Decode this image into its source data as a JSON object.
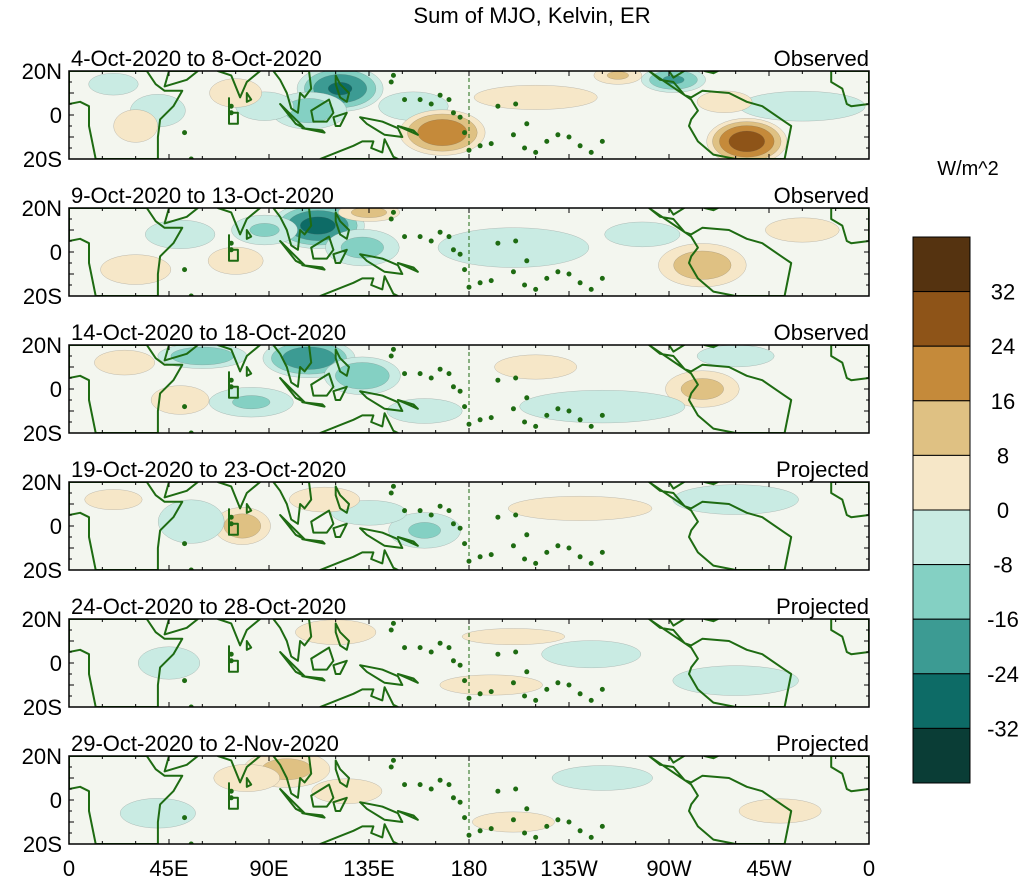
{
  "chart_data": {
    "type": "heatmap",
    "title": "Sum of MJO, Kelvin, ER",
    "colorbar": {
      "unit": "W/m^2",
      "tick_labels": [
        "32",
        "24",
        "16",
        "8",
        "0",
        "-8",
        "-16",
        "-24",
        "-32"
      ],
      "ticks": [
        32,
        24,
        16,
        8,
        0,
        -8,
        -16,
        -24,
        -32
      ],
      "range": [
        -40,
        40
      ],
      "colors": [
        "#553310",
        "#8e5418",
        "#c58a3a",
        "#dfc183",
        "#f6e7c8",
        "#c9ebe3",
        "#84d0c3",
        "#3c9b93",
        "#0d6b66",
        "#0a3d36"
      ]
    },
    "x_ticks": [
      "0",
      "45E",
      "90E",
      "135E",
      "180",
      "135W",
      "90W",
      "45W",
      "0"
    ],
    "x_tick_values": [
      0,
      45,
      90,
      135,
      180,
      225,
      270,
      315,
      360
    ],
    "y_ticks": [
      "20N",
      "0",
      "20S"
    ],
    "y_tick_values": [
      20,
      0,
      -20
    ],
    "panels": [
      {
        "period": "4-Oct-2020 to 8-Oct-2020",
        "status": "Observed",
        "anomalies": [
          {
            "lon": 122,
            "lat": 12,
            "value": -30,
            "wlon": 13,
            "wlat": 7
          },
          {
            "lon": 108,
            "lat": 2,
            "value": -18,
            "wlon": 12,
            "wlat": 6
          },
          {
            "lon": 88,
            "lat": 4,
            "value": -12,
            "wlon": 10,
            "wlat": 5
          },
          {
            "lon": 40,
            "lat": 2,
            "value": -10,
            "wlon": 10,
            "wlat": 6
          },
          {
            "lon": 20,
            "lat": 14,
            "value": -10,
            "wlon": 9,
            "wlat": 4
          },
          {
            "lon": 155,
            "lat": 4,
            "value": -12,
            "wlon": 12,
            "wlat": 5
          },
          {
            "lon": 330,
            "lat": 4,
            "value": -8,
            "wlon": 25,
            "wlat": 6
          },
          {
            "lon": 272,
            "lat": 16,
            "value": -22,
            "wlon": 10,
            "wlat": 4
          },
          {
            "lon": 247,
            "lat": 18,
            "value": 14,
            "wlon": 8,
            "wlat": 3
          },
          {
            "lon": 168,
            "lat": -8,
            "value": 28,
            "wlon": 13,
            "wlat": 7
          },
          {
            "lon": 305,
            "lat": -12,
            "value": 34,
            "wlon": 12,
            "wlat": 7
          },
          {
            "lon": 75,
            "lat": 10,
            "value": 12,
            "wlon": 9,
            "wlat": 5
          },
          {
            "lon": 30,
            "lat": -5,
            "value": 10,
            "wlon": 8,
            "wlat": 6
          },
          {
            "lon": 295,
            "lat": 6,
            "value": 10,
            "wlon": 10,
            "wlat": 4
          },
          {
            "lon": 210,
            "lat": 8,
            "value": 6,
            "wlon": 30,
            "wlat": 6
          }
        ]
      },
      {
        "period": "9-Oct-2020 to 13-Oct-2020",
        "status": "Observed",
        "anomalies": [
          {
            "lon": 112,
            "lat": 12,
            "value": -32,
            "wlon": 14,
            "wlat": 7
          },
          {
            "lon": 132,
            "lat": 2,
            "value": -16,
            "wlon": 12,
            "wlat": 6
          },
          {
            "lon": 88,
            "lat": 10,
            "value": -14,
            "wlon": 11,
            "wlat": 5
          },
          {
            "lon": 50,
            "lat": 8,
            "value": -12,
            "wlon": 12,
            "wlat": 5
          },
          {
            "lon": 75,
            "lat": -4,
            "value": 10,
            "wlon": 10,
            "wlat": 5
          },
          {
            "lon": 135,
            "lat": 18,
            "value": 16,
            "wlon": 10,
            "wlat": 3
          },
          {
            "lon": 285,
            "lat": -6,
            "value": 18,
            "wlon": 14,
            "wlat": 7
          },
          {
            "lon": 200,
            "lat": 2,
            "value": -8,
            "wlon": 30,
            "wlat": 8
          },
          {
            "lon": 258,
            "lat": 8,
            "value": -8,
            "wlon": 15,
            "wlat": 5
          },
          {
            "lon": 30,
            "lat": -8,
            "value": 8,
            "wlon": 14,
            "wlat": 6
          },
          {
            "lon": 330,
            "lat": 10,
            "value": 6,
            "wlon": 18,
            "wlat": 6
          }
        ]
      },
      {
        "period": "14-Oct-2020 to 18-Oct-2020",
        "status": "Observed",
        "anomalies": [
          {
            "lon": 108,
            "lat": 14,
            "value": -28,
            "wlon": 14,
            "wlat": 6
          },
          {
            "lon": 132,
            "lat": 6,
            "value": -20,
            "wlon": 12,
            "wlat": 6
          },
          {
            "lon": 60,
            "lat": 15,
            "value": -20,
            "wlon": 14,
            "wlat": 4
          },
          {
            "lon": 82,
            "lat": -6,
            "value": -14,
            "wlon": 14,
            "wlat": 5
          },
          {
            "lon": 50,
            "lat": -5,
            "value": 12,
            "wlon": 10,
            "wlat": 5
          },
          {
            "lon": 25,
            "lat": 12,
            "value": 8,
            "wlon": 12,
            "wlat": 5
          },
          {
            "lon": 285,
            "lat": 0,
            "value": 16,
            "wlon": 12,
            "wlat": 6
          },
          {
            "lon": 240,
            "lat": -8,
            "value": -10,
            "wlon": 30,
            "wlat": 6
          },
          {
            "lon": 300,
            "lat": 15,
            "value": -10,
            "wlon": 14,
            "wlat": 4
          },
          {
            "lon": 210,
            "lat": 10,
            "value": 6,
            "wlon": 20,
            "wlat": 6
          },
          {
            "lon": 160,
            "lat": -10,
            "value": -8,
            "wlon": 15,
            "wlat": 5
          }
        ]
      },
      {
        "period": "19-Oct-2020 to 23-Oct-2020",
        "status": "Projected",
        "anomalies": [
          {
            "lon": 78,
            "lat": 0,
            "value": 18,
            "wlon": 9,
            "wlat": 6
          },
          {
            "lon": 55,
            "lat": 2,
            "value": -10,
            "wlon": 12,
            "wlat": 8
          },
          {
            "lon": 160,
            "lat": -2,
            "value": -14,
            "wlon": 12,
            "wlat": 6
          },
          {
            "lon": 135,
            "lat": 6,
            "value": -8,
            "wlon": 15,
            "wlat": 5
          },
          {
            "lon": 115,
            "lat": 12,
            "value": 8,
            "wlon": 14,
            "wlat": 5
          },
          {
            "lon": 230,
            "lat": 8,
            "value": 6,
            "wlon": 35,
            "wlat": 6
          },
          {
            "lon": 300,
            "lat": 12,
            "value": -8,
            "wlon": 25,
            "wlat": 6
          },
          {
            "lon": 20,
            "lat": 12,
            "value": 6,
            "wlon": 14,
            "wlat": 5
          }
        ]
      },
      {
        "period": "24-Oct-2020 to 28-Oct-2020",
        "status": "Projected",
        "anomalies": [
          {
            "lon": 235,
            "lat": 4,
            "value": -10,
            "wlon": 18,
            "wlat": 5
          },
          {
            "lon": 120,
            "lat": 14,
            "value": 8,
            "wlon": 16,
            "wlat": 5
          },
          {
            "lon": 45,
            "lat": 0,
            "value": -6,
            "wlon": 15,
            "wlat": 8
          },
          {
            "lon": 190,
            "lat": -10,
            "value": 6,
            "wlon": 25,
            "wlat": 5
          },
          {
            "lon": 300,
            "lat": -8,
            "value": -8,
            "wlon": 25,
            "wlat": 6
          },
          {
            "lon": 200,
            "lat": 12,
            "value": 6,
            "wlon": 25,
            "wlat": 4
          }
        ]
      },
      {
        "period": "29-Oct-2020 to 2-Nov-2020",
        "status": "Projected",
        "anomalies": [
          {
            "lon": 98,
            "lat": 14,
            "value": 16,
            "wlon": 14,
            "wlat": 6
          },
          {
            "lon": 125,
            "lat": 4,
            "value": 8,
            "wlon": 14,
            "wlat": 5
          },
          {
            "lon": 80,
            "lat": 10,
            "value": 10,
            "wlon": 12,
            "wlat": 5
          },
          {
            "lon": 40,
            "lat": -6,
            "value": -8,
            "wlon": 15,
            "wlat": 6
          },
          {
            "lon": 240,
            "lat": 10,
            "value": -8,
            "wlon": 20,
            "wlat": 5
          },
          {
            "lon": 320,
            "lat": -5,
            "value": 6,
            "wlon": 20,
            "wlat": 6
          },
          {
            "lon": 200,
            "lat": -10,
            "value": 6,
            "wlon": 20,
            "wlat": 5
          }
        ]
      }
    ]
  }
}
